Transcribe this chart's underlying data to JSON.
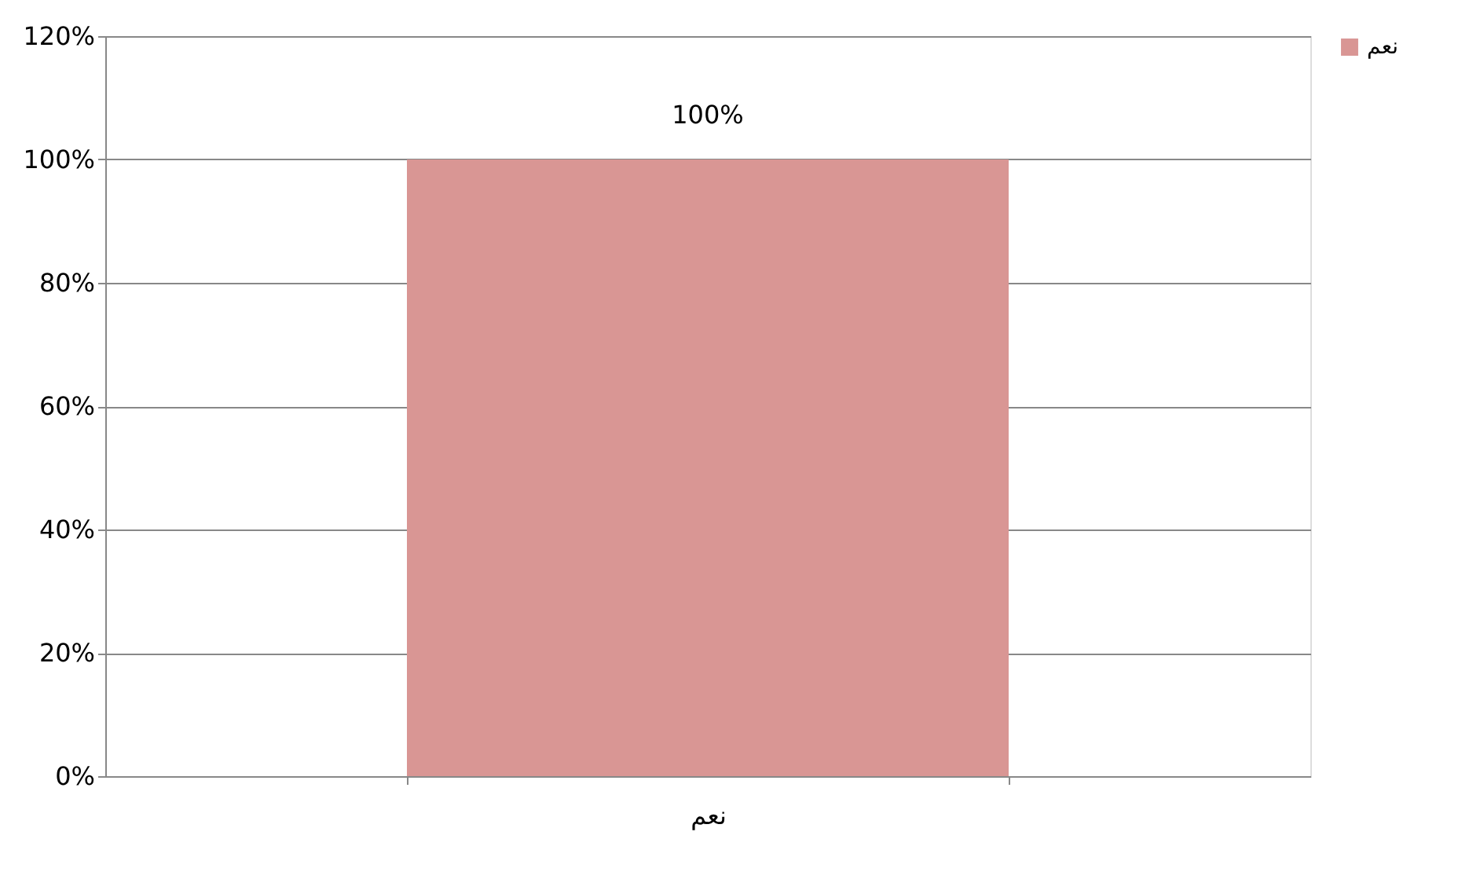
{
  "chart_data": {
    "type": "bar",
    "categories": [
      "نعم"
    ],
    "series": [
      {
        "name": "نعم",
        "color": "#d99694",
        "values": [
          100
        ],
        "value_labels": [
          "100%"
        ]
      }
    ],
    "ylim": [
      0,
      120
    ],
    "yticks": [
      {
        "value": 0,
        "label": "0%"
      },
      {
        "value": 20,
        "label": "20%"
      },
      {
        "value": 40,
        "label": "40%"
      },
      {
        "value": 60,
        "label": "60%"
      },
      {
        "value": 80,
        "label": "80%"
      },
      {
        "value": 100,
        "label": "100%"
      },
      {
        "value": 120,
        "label": "120%"
      }
    ],
    "grid": "y",
    "legend": "right"
  }
}
